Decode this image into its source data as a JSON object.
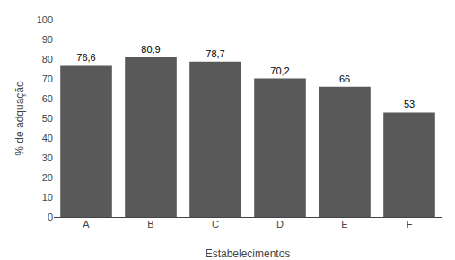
{
  "chart_data": {
    "type": "bar",
    "categories": [
      "A",
      "B",
      "C",
      "D",
      "E",
      "F"
    ],
    "values": [
      76.6,
      80.9,
      78.7,
      70.2,
      66,
      53
    ],
    "value_labels": [
      "76,6",
      "80,9",
      "78,7",
      "70,2",
      "66",
      "53"
    ],
    "data_labels": true,
    "color": "#595959",
    "xlabel": "Estabelecimentos",
    "ylabel": "% de adquação",
    "ylim": [
      0,
      100
    ],
    "yticks": [
      0,
      10,
      20,
      30,
      40,
      50,
      60,
      70,
      80,
      90,
      100
    ],
    "grid": false
  }
}
